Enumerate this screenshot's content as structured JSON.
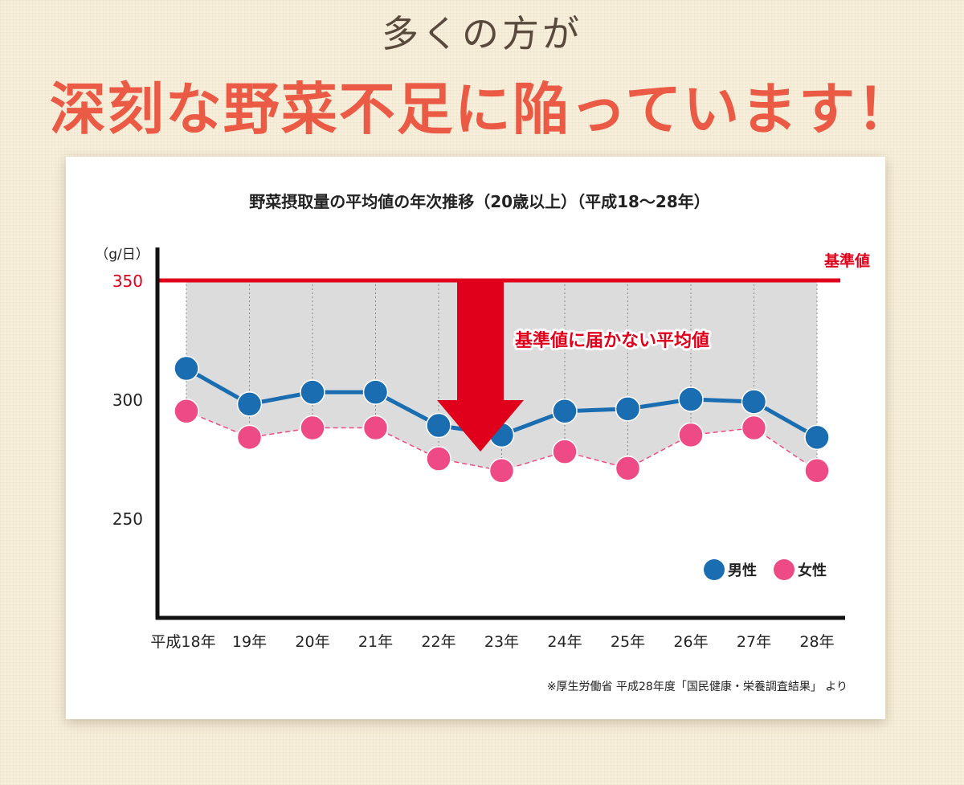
{
  "heading": {
    "sub": "多くの方が",
    "main": "深刻な野菜不足に陥っています！"
  },
  "chart_data": {
    "type": "line",
    "title": "野菜摂取量の平均値の年次推移（20歳以上）（平成18〜28年）",
    "ylabel": "（g/日）",
    "categories": [
      "平成18年",
      "19年",
      "20年",
      "21年",
      "22年",
      "23年",
      "24年",
      "25年",
      "26年",
      "27年",
      "28年"
    ],
    "yticks": [
      350,
      300,
      250
    ],
    "ylim": [
      205,
      360
    ],
    "series": [
      {
        "name": "男性",
        "color": "#1a6db0",
        "values": [
          313,
          298,
          303,
          303,
          289,
          285,
          295,
          296,
          300,
          299,
          284
        ]
      },
      {
        "name": "女性",
        "color": "#ee4a86",
        "values": [
          295,
          284,
          288,
          288,
          275,
          270,
          278,
          271,
          285,
          288,
          270
        ]
      }
    ],
    "reference_line": {
      "value": 350,
      "label": "基準値",
      "color": "#e0001b"
    },
    "annotation": "基準値に届かない平均値",
    "legend_position": "bottom-right",
    "grid": "vertical-dotted",
    "source": "※厚生労働省 平成28年度「国民健康・栄養調査結果」 より"
  }
}
